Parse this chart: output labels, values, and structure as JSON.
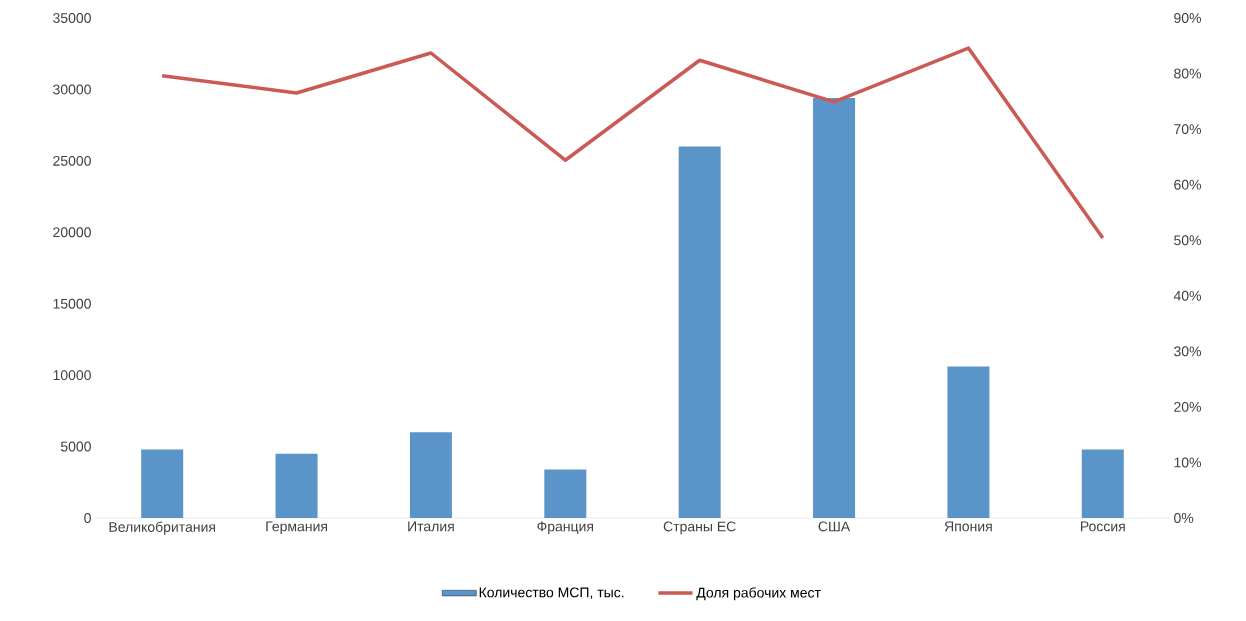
{
  "chart_data": {
    "type": "bar",
    "categories": [
      "Великобритания",
      "Германия",
      "Италия",
      "Франция",
      "Страны ЕС",
      "США",
      "Япония",
      "Россия"
    ],
    "series": [
      {
        "name": "Количество МСП, тыс.",
        "color": "#5b94c8",
        "values": [
          4800,
          4500,
          6000,
          3400,
          26000,
          29400,
          10600,
          4800
        ]
      },
      {
        "name": "Доля рабочих мест",
        "type": "line",
        "axis": "y2",
        "color": "#cb5a55",
        "values": [
          79.6,
          76.5,
          83.7,
          64.4,
          82.4,
          74.9,
          84.6,
          50.4
        ]
      }
    ],
    "ylim": [
      0,
      35000
    ],
    "yticks": [
      0,
      5000,
      10000,
      15000,
      20000,
      25000,
      30000,
      35000
    ],
    "y2lim": [
      0,
      90
    ],
    "y2ticks": [
      {
        "value": 0,
        "label": "0%"
      },
      {
        "value": 10,
        "label": "10%"
      },
      {
        "value": 20,
        "label": "20%"
      },
      {
        "value": 30,
        "label": "30%"
      },
      {
        "value": 40,
        "label": "40%"
      },
      {
        "value": 50,
        "label": "50%"
      },
      {
        "value": 60,
        "label": "60%"
      },
      {
        "value": 70,
        "label": "70%"
      },
      {
        "value": 80,
        "label": "80%"
      },
      {
        "value": 90,
        "label": "90%"
      }
    ],
    "legend": "bottom",
    "grid": false,
    "marker": "none"
  }
}
